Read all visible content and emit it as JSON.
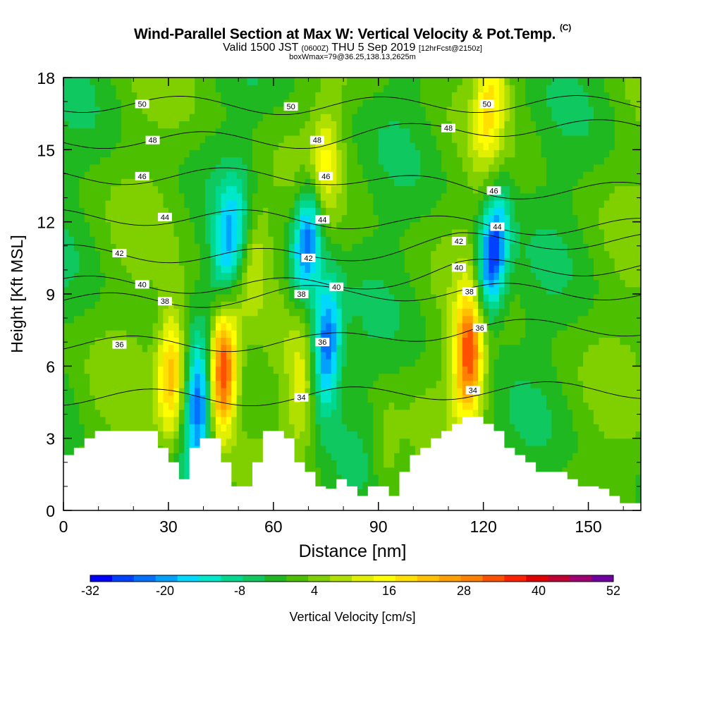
{
  "header": {
    "title": "Wind-Parallel Section at Max W: Vertical Velocity & Pot.Temp.",
    "title_mark": "(C)",
    "subtitle_main": "Valid 1500 JST",
    "subtitle_z": "(0600Z)",
    "subtitle_date": "THU 5 Sep 2019",
    "subtitle_fcst": "[12hrFcst@2150z]",
    "subsubtitle": "boxWmax=79@36.25,138.13,2625m"
  },
  "colors": {
    "palette": [
      "#0000ff",
      "#0040ff",
      "#0070ff",
      "#00a0ff",
      "#00d8ff",
      "#00e8c8",
      "#00d890",
      "#10c860",
      "#20b820",
      "#4cc000",
      "#80d000",
      "#b0e000",
      "#e0f000",
      "#ffff00",
      "#ffe000",
      "#ffc000",
      "#ffa000",
      "#ff8000",
      "#ff5000",
      "#ff2000",
      "#e00000",
      "#c00030",
      "#a00070",
      "#7000a0"
    ],
    "terrain": "#ffffff",
    "contour": "#000000"
  },
  "chart_data": {
    "type": "heatmap",
    "xlabel": "Distance [nm]",
    "ylabel": "Height [Kft MSL]",
    "xlim": [
      0,
      165
    ],
    "ylim": [
      0,
      18
    ],
    "x_ticks": [
      0,
      30,
      60,
      90,
      120,
      150
    ],
    "y_ticks": [
      0,
      3,
      6,
      9,
      12,
      15,
      18
    ],
    "colorbar": {
      "label": "Vertical Velocity [cm/s]",
      "min": -32,
      "max": 52,
      "step": 4,
      "tick_labels": [
        -32,
        -20,
        -8,
        4,
        16,
        28,
        40,
        52
      ]
    },
    "vertical_velocity_features": [
      {
        "x": 31,
        "height": 5.8,
        "w": 32
      },
      {
        "x": 38.5,
        "height": 4.2,
        "w": -22
      },
      {
        "x": 45.5,
        "height": 5.8,
        "w": 50
      },
      {
        "x": 55,
        "height": 10.5,
        "w": 16
      },
      {
        "x": 47,
        "height": 11,
        "w": -14
      },
      {
        "x": 68,
        "height": 5,
        "w": 16
      },
      {
        "x": 70,
        "height": 11.5,
        "w": -28
      },
      {
        "x": 75,
        "height": 6.9,
        "w": -26
      },
      {
        "x": 74,
        "height": 14,
        "w": 22
      },
      {
        "x": 92,
        "height": 2,
        "w": 12
      },
      {
        "x": 116,
        "height": 6.5,
        "w": 44
      },
      {
        "x": 122.5,
        "height": 10.5,
        "w": -30
      },
      {
        "x": 122,
        "height": 17,
        "w": 22
      }
    ],
    "theta_contour_labels": [
      {
        "value": 34,
        "x": 68,
        "height": 4.7
      },
      {
        "value": 34,
        "x": 117,
        "height": 5
      },
      {
        "value": 36,
        "x": 16,
        "height": 6.9
      },
      {
        "value": 36,
        "x": 74,
        "height": 7
      },
      {
        "value": 36,
        "x": 119,
        "height": 7.6
      },
      {
        "value": 38,
        "x": 29,
        "height": 8.7
      },
      {
        "value": 38,
        "x": 68,
        "height": 9
      },
      {
        "value": 38,
        "x": 116,
        "height": 9.1
      },
      {
        "value": 40,
        "x": 22.5,
        "height": 9.4
      },
      {
        "value": 40,
        "x": 78,
        "height": 9.3
      },
      {
        "value": 40,
        "x": 113,
        "height": 10.1
      },
      {
        "value": 42,
        "x": 16,
        "height": 10.7
      },
      {
        "value": 42,
        "x": 70,
        "height": 10.5
      },
      {
        "value": 42,
        "x": 113,
        "height": 11.2
      },
      {
        "value": 44,
        "x": 29,
        "height": 12.2
      },
      {
        "value": 44,
        "x": 74,
        "height": 12.1
      },
      {
        "value": 44,
        "x": 124,
        "height": 11.8
      },
      {
        "value": 46,
        "x": 22.5,
        "height": 13.9
      },
      {
        "value": 46,
        "x": 75,
        "height": 13.9
      },
      {
        "value": 46,
        "x": 123,
        "height": 13.3
      },
      {
        "value": 48,
        "x": 25.5,
        "height": 15.4
      },
      {
        "value": 48,
        "x": 72.5,
        "height": 15.4
      },
      {
        "value": 48,
        "x": 110,
        "height": 15.9
      },
      {
        "value": 50,
        "x": 22.5,
        "height": 16.9
      },
      {
        "value": 50,
        "x": 65,
        "height": 16.8
      },
      {
        "value": 50,
        "x": 121,
        "height": 16.9
      }
    ],
    "terrain": [
      [
        0,
        2.3
      ],
      [
        3,
        2.3
      ],
      [
        3,
        2.6
      ],
      [
        6,
        2.6
      ],
      [
        6,
        3.0
      ],
      [
        9,
        3.0
      ],
      [
        9,
        3.3
      ],
      [
        27,
        3.3
      ],
      [
        27,
        2.6
      ],
      [
        30,
        2.6
      ],
      [
        30,
        2.0
      ],
      [
        33,
        2.0
      ],
      [
        33,
        1.3
      ],
      [
        36,
        1.3
      ],
      [
        36,
        2.6
      ],
      [
        39,
        2.6
      ],
      [
        39,
        3.0
      ],
      [
        45,
        3.0
      ],
      [
        45,
        2.0
      ],
      [
        48,
        2.0
      ],
      [
        48,
        1.0
      ],
      [
        54,
        1.0
      ],
      [
        54,
        2.0
      ],
      [
        57,
        2.0
      ],
      [
        57,
        3.3
      ],
      [
        63,
        3.3
      ],
      [
        63,
        3.0
      ],
      [
        66,
        3.0
      ],
      [
        66,
        2.0
      ],
      [
        69,
        2.0
      ],
      [
        69,
        1.6
      ],
      [
        72,
        1.6
      ],
      [
        72,
        1.0
      ],
      [
        75,
        1.0
      ],
      [
        75,
        0.9
      ],
      [
        78,
        0.9
      ],
      [
        78,
        1.3
      ],
      [
        81,
        1.3
      ],
      [
        81,
        1.0
      ],
      [
        84,
        1.0
      ],
      [
        84,
        0.6
      ],
      [
        87,
        0.6
      ],
      [
        87,
        1.0
      ],
      [
        93,
        1.0
      ],
      [
        93,
        0.6
      ],
      [
        96,
        0.6
      ],
      [
        96,
        1.6
      ],
      [
        99,
        1.6
      ],
      [
        99,
        2.3
      ],
      [
        102,
        2.3
      ],
      [
        102,
        2.6
      ],
      [
        105,
        2.6
      ],
      [
        105,
        3.0
      ],
      [
        108,
        3.0
      ],
      [
        108,
        3.3
      ],
      [
        111,
        3.3
      ],
      [
        111,
        3.6
      ],
      [
        114,
        3.6
      ],
      [
        114,
        3.9
      ],
      [
        120,
        3.9
      ],
      [
        120,
        3.6
      ],
      [
        123,
        3.6
      ],
      [
        123,
        3.3
      ],
      [
        126,
        3.3
      ],
      [
        126,
        2.6
      ],
      [
        129,
        2.6
      ],
      [
        129,
        2.3
      ],
      [
        132,
        2.3
      ],
      [
        132,
        2.0
      ],
      [
        135,
        2.0
      ],
      [
        135,
        1.6
      ],
      [
        144,
        1.6
      ],
      [
        144,
        1.3
      ],
      [
        147,
        1.3
      ],
      [
        147,
        1.0
      ],
      [
        153,
        1.0
      ],
      [
        153,
        0.9
      ],
      [
        156,
        0.9
      ],
      [
        156,
        0.6
      ],
      [
        159,
        0.6
      ],
      [
        159,
        0.3
      ],
      [
        165,
        0.3
      ]
    ]
  }
}
